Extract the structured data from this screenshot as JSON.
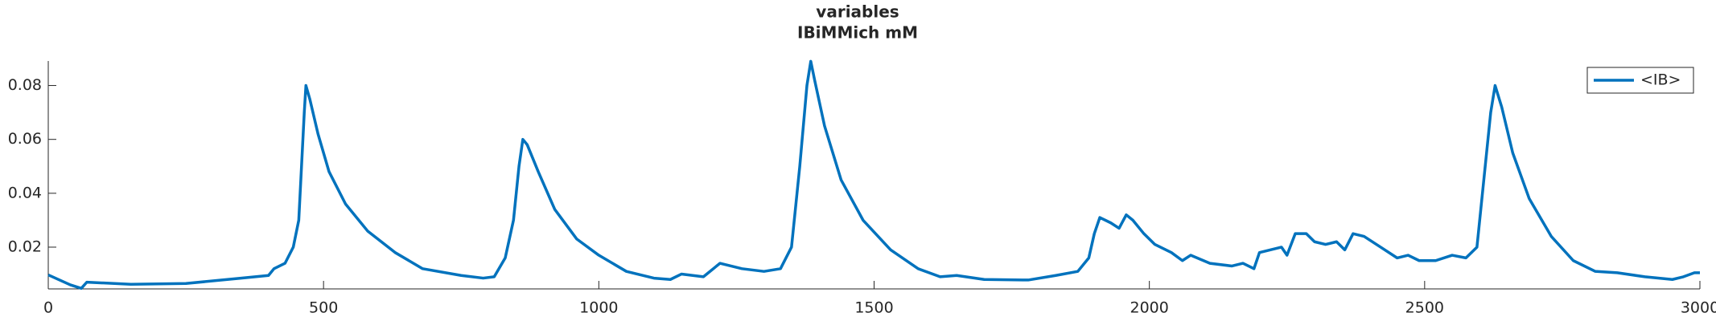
{
  "chart_data": {
    "type": "line",
    "title": "variables",
    "subtitle": "IBiMMich mM",
    "x": [
      0,
      40,
      60,
      70,
      150,
      250,
      350,
      400,
      410,
      430,
      445,
      455,
      460,
      465,
      468,
      475,
      490,
      510,
      540,
      580,
      630,
      680,
      750,
      790,
      810,
      830,
      845,
      855,
      862,
      870,
      890,
      920,
      960,
      1000,
      1050,
      1100,
      1130,
      1150,
      1190,
      1220,
      1260,
      1300,
      1330,
      1350,
      1365,
      1378,
      1385,
      1392,
      1410,
      1440,
      1480,
      1530,
      1580,
      1620,
      1650,
      1700,
      1780,
      1830,
      1870,
      1890,
      1900,
      1910,
      1930,
      1945,
      1958,
      1970,
      1990,
      2010,
      2040,
      2060,
      2075,
      2110,
      2150,
      2170,
      2190,
      2200,
      2220,
      2240,
      2250,
      2265,
      2285,
      2300,
      2320,
      2340,
      2355,
      2370,
      2390,
      2420,
      2450,
      2470,
      2490,
      2520,
      2550,
      2575,
      2595,
      2605,
      2620,
      2628,
      2640,
      2660,
      2690,
      2730,
      2770,
      2810,
      2850,
      2900,
      2950,
      2970,
      2990,
      3000
    ],
    "series": [
      {
        "name": "<IB>",
        "color": "#0072bd",
        "values": [
          0.0097,
          0.006,
          0.0047,
          0.007,
          0.0062,
          0.0065,
          0.0085,
          0.0095,
          0.012,
          0.014,
          0.02,
          0.03,
          0.05,
          0.07,
          0.08,
          0.075,
          0.062,
          0.048,
          0.036,
          0.026,
          0.018,
          0.012,
          0.0095,
          0.0085,
          0.009,
          0.016,
          0.03,
          0.05,
          0.06,
          0.058,
          0.048,
          0.034,
          0.023,
          0.017,
          0.011,
          0.0085,
          0.008,
          0.01,
          0.009,
          0.014,
          0.012,
          0.011,
          0.012,
          0.02,
          0.05,
          0.08,
          0.089,
          0.082,
          0.065,
          0.045,
          0.03,
          0.019,
          0.012,
          0.009,
          0.0095,
          0.008,
          0.0078,
          0.0095,
          0.011,
          0.016,
          0.025,
          0.031,
          0.029,
          0.027,
          0.032,
          0.03,
          0.025,
          0.021,
          0.018,
          0.015,
          0.017,
          0.014,
          0.013,
          0.014,
          0.012,
          0.018,
          0.019,
          0.02,
          0.017,
          0.025,
          0.025,
          0.022,
          0.021,
          0.022,
          0.019,
          0.025,
          0.024,
          0.02,
          0.016,
          0.017,
          0.015,
          0.015,
          0.017,
          0.016,
          0.02,
          0.04,
          0.07,
          0.08,
          0.072,
          0.055,
          0.038,
          0.024,
          0.015,
          0.011,
          0.0105,
          0.009,
          0.008,
          0.009,
          0.0105,
          0.0105
        ]
      }
    ],
    "xlim": [
      0,
      3000
    ],
    "xticks": [
      0,
      500,
      1000,
      1500,
      2000,
      2500,
      3000
    ],
    "ylim": [
      0.0045,
      0.0891
    ],
    "yticks": [
      0.02,
      0.04,
      0.06,
      0.08
    ],
    "legend": "upper right"
  }
}
